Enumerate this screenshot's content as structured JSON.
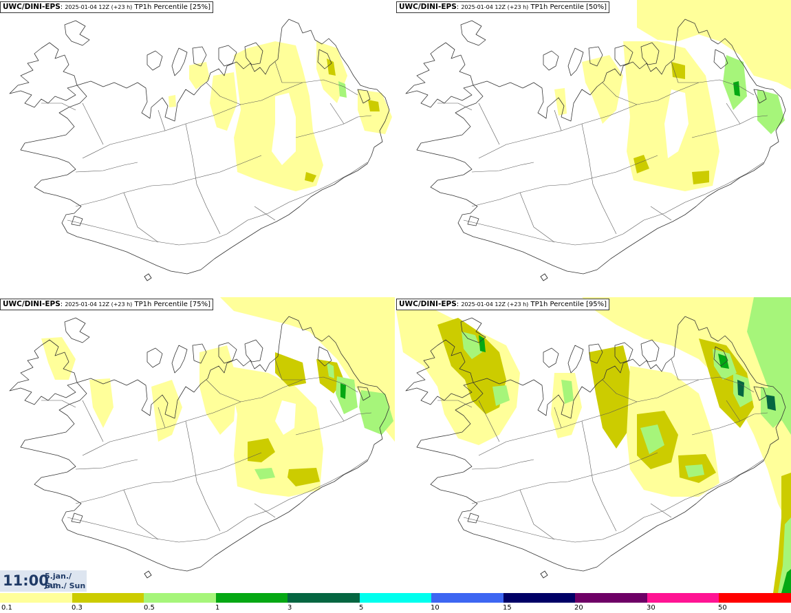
{
  "panels": [
    {
      "source": "UWC/DINI-EPS",
      "run": "2025-01-04 12Z (+23 h)",
      "title": "TP1h Percentile [25%]"
    },
    {
      "source": "UWC/DINI-EPS",
      "run": "2025-01-04 12Z (+23 h)",
      "title": "TP1h Percentile [50%]"
    },
    {
      "source": "UWC/DINI-EPS",
      "run": "2025-01-04 12Z (+23 h)",
      "title": "TP1h Percentile [75%]"
    },
    {
      "source": "UWC/DINI-EPS",
      "run": "2025-01-04 12Z (+23 h)",
      "title": "TP1h Percentile [95%]"
    }
  ],
  "valid_time": {
    "hour": "11:00",
    "date": "5.jan./ Jan",
    "day": "Sun./ Sun"
  },
  "legend": {
    "colors": [
      "#ffff9a",
      "#cccc00",
      "#a6f57a",
      "#05a814",
      "#056641",
      "#00ffee",
      "#3d66f2",
      "#000066",
      "#6e0066",
      "#ff1493",
      "#ff0000"
    ],
    "labels": [
      "0.1",
      "0.3",
      "0.5",
      "1",
      "3",
      "5",
      "10",
      "15",
      "20",
      "30",
      "50"
    ]
  }
}
